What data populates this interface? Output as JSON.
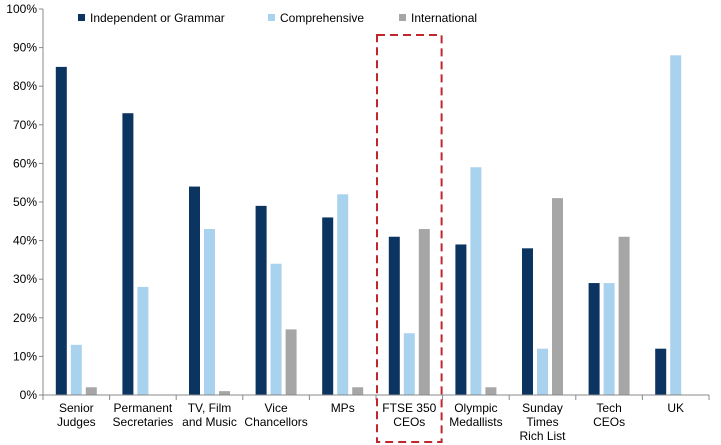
{
  "chart_data": {
    "type": "bar",
    "categories": [
      [
        "Senior",
        "Judges"
      ],
      [
        "Permanent",
        "Secretaries"
      ],
      [
        "TV, Film",
        "and Music"
      ],
      [
        "Vice",
        "Chancellors"
      ],
      [
        "MPs"
      ],
      [
        "FTSE 350",
        "CEOs"
      ],
      [
        "Olympic",
        "Medallists"
      ],
      [
        "Sunday",
        "Times",
        "Rich List"
      ],
      [
        "Tech",
        "CEOs"
      ],
      [
        "UK"
      ]
    ],
    "series": [
      {
        "name": "Independent or Grammar",
        "color": "#0b3460",
        "values": [
          85,
          73,
          54,
          49,
          46,
          41,
          39,
          38,
          29,
          12
        ]
      },
      {
        "name": "Comprehensive",
        "color": "#a9d2ef",
        "values": [
          13,
          28,
          43,
          34,
          52,
          16,
          59,
          12,
          29,
          88
        ]
      },
      {
        "name": "International",
        "color": "#a6a6a6",
        "values": [
          2,
          0,
          1,
          17,
          2,
          43,
          2,
          51,
          41,
          0
        ]
      }
    ],
    "ylim": [
      0,
      100
    ],
    "yticks": [
      "0%",
      "10%",
      "20%",
      "30%",
      "40%",
      "50%",
      "60%",
      "70%",
      "80%",
      "90%",
      "100%"
    ],
    "legend_position": "top",
    "highlighted_category": "FTSE 350 CEOs",
    "highlight_color": "#c0272d"
  }
}
